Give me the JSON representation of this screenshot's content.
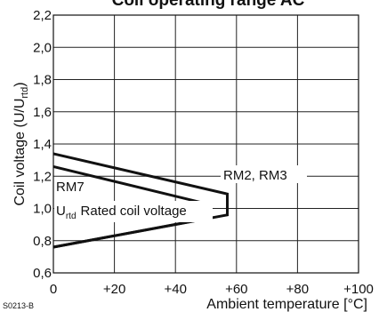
{
  "chart_data": {
    "type": "line",
    "title": "Coil operating range AC",
    "xlabel": "Ambient temperature [°C]",
    "ylabel_main": "Coil voltage (U/U",
    "ylabel_sub": "rtd",
    "ylabel_end": ")",
    "xlim": [
      0,
      100
    ],
    "ylim": [
      0.6,
      2.2
    ],
    "xticks": [
      0,
      20,
      40,
      60,
      80,
      100
    ],
    "xtick_labels": [
      "0",
      "+20",
      "+40",
      "+60",
      "+80",
      "+100"
    ],
    "yticks": [
      0.6,
      0.8,
      1.0,
      1.2,
      1.4,
      1.6,
      1.8,
      2.0,
      2.2
    ],
    "ytick_labels": [
      "0,6",
      "0,8",
      "1,0",
      "1,2",
      "1,4",
      "1,6",
      "1,8",
      "2,0",
      "2,2"
    ],
    "grid": true,
    "series": [
      {
        "name": "RM2, RM3",
        "x": [
          0,
          57,
          57,
          0
        ],
        "y": [
          1.34,
          1.09,
          0.96,
          0.76
        ]
      },
      {
        "name": "RM7",
        "x": [
          0,
          50,
          51,
          0
        ],
        "y": [
          1.26,
          1.03,
          0.94,
          0.76
        ]
      }
    ],
    "annotations": {
      "rm23": "RM2, RM3",
      "rm7": "RM7",
      "rated_u": "U",
      "rated_sub": "rtd",
      "rated_text": "Rated coil voltage"
    },
    "figure_code": "S0213-B"
  }
}
